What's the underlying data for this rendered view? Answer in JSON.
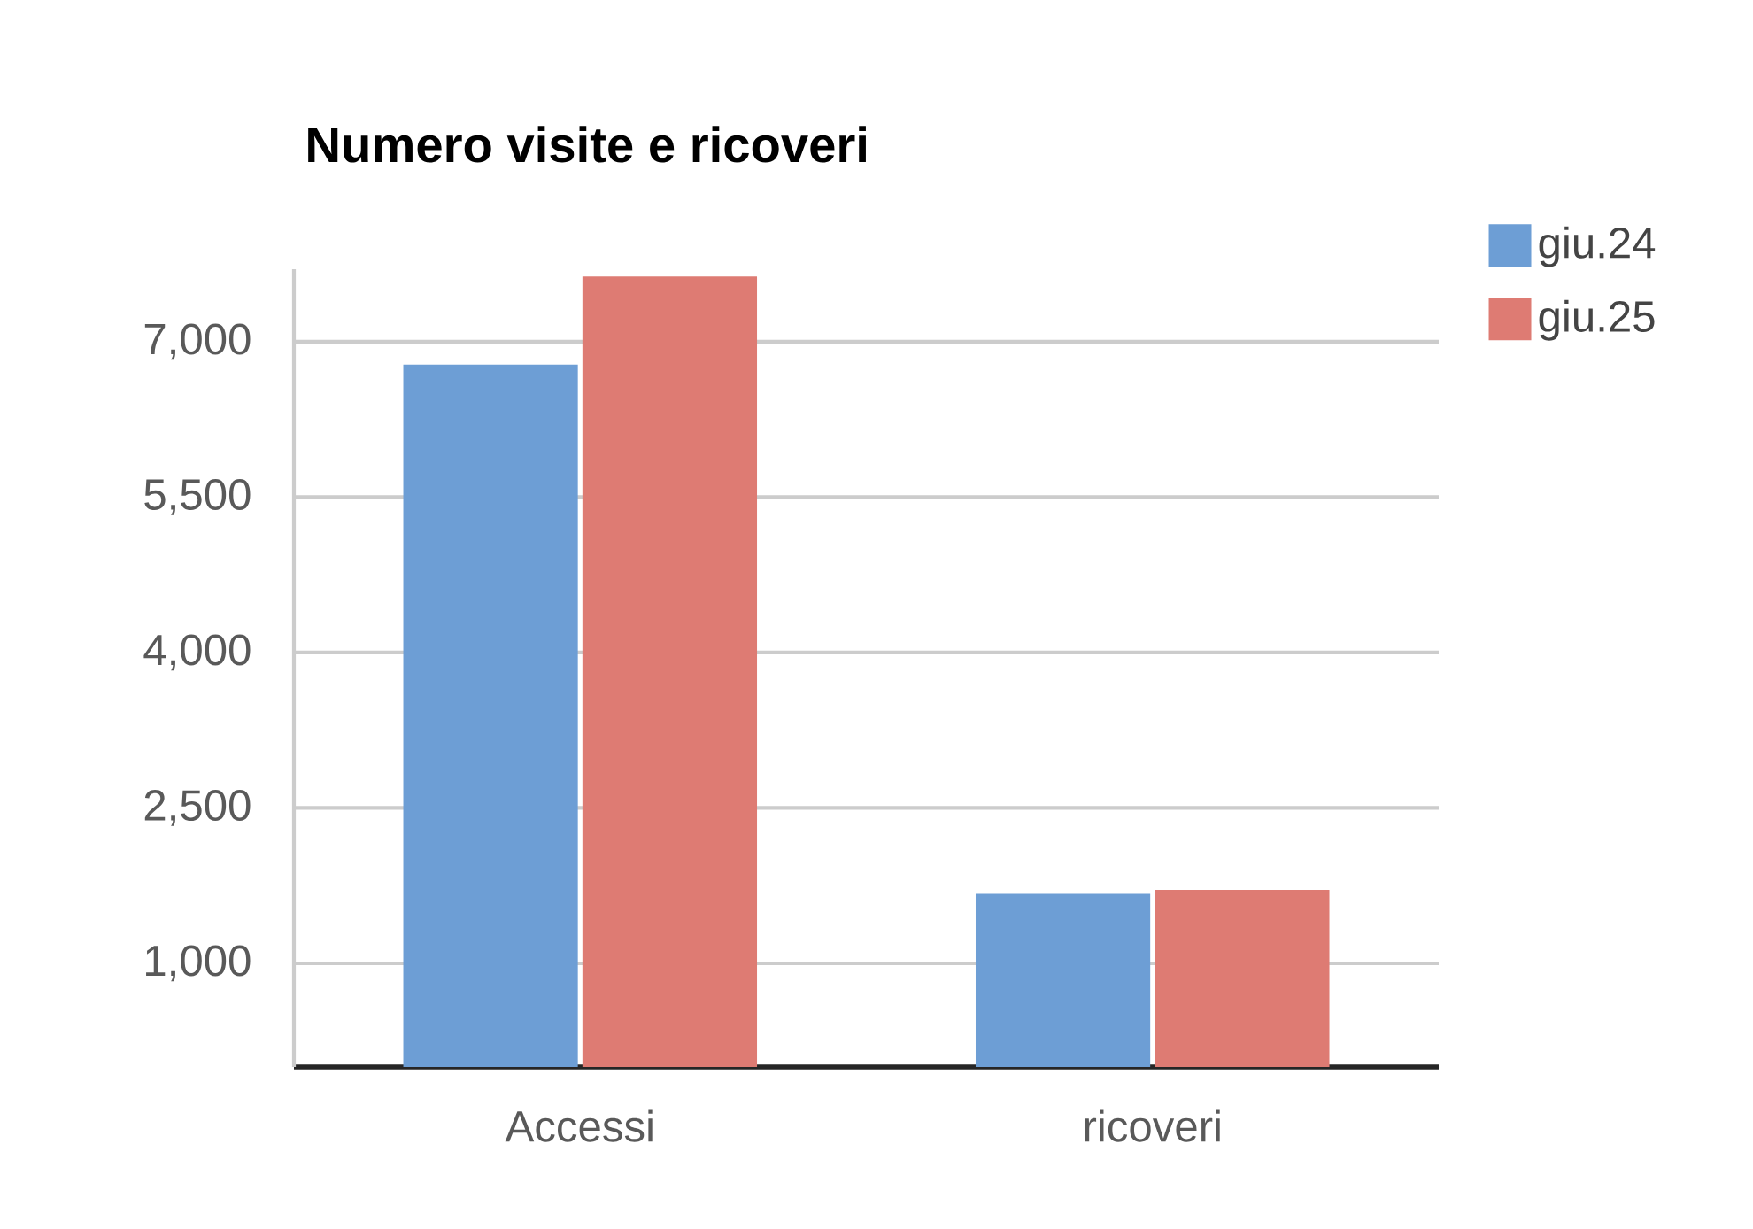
{
  "chart_data": {
    "type": "bar",
    "title": "Numero visite e ricoveri",
    "categories": [
      "Accessi",
      "ricoveri"
    ],
    "series": [
      {
        "name": "giu.24",
        "color": "#6d9ed5",
        "values": [
          6780,
          1670
        ]
      },
      {
        "name": "giu.25",
        "color": "#de7b73",
        "values": [
          7630,
          1710
        ]
      }
    ],
    "ylim": [
      0,
      7700
    ],
    "yticks": [
      {
        "value": 1000,
        "label": "1,000"
      },
      {
        "value": 2500,
        "label": "2,500"
      },
      {
        "value": 4000,
        "label": "4,000"
      },
      {
        "value": 5500,
        "label": "5,500"
      },
      {
        "value": 7000,
        "label": "7,000"
      }
    ],
    "grid": "y",
    "legend": "top right"
  }
}
